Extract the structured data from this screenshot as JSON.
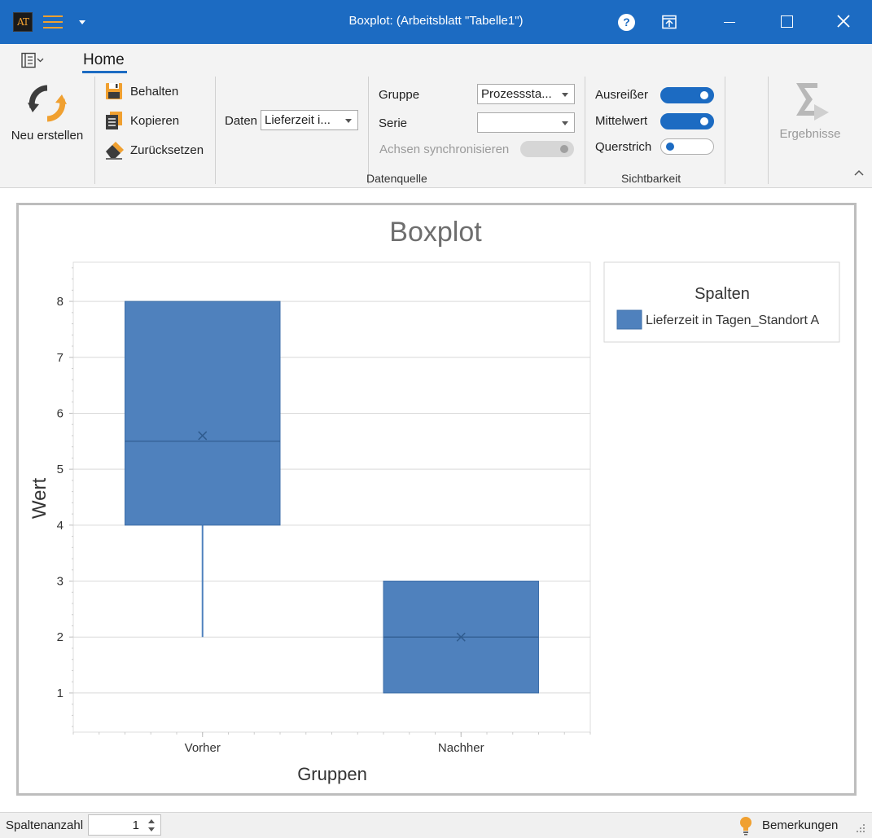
{
  "window": {
    "title": "Boxplot:  (Arbeitsblatt \"Tabelle1\")",
    "logo_text": "AT",
    "colors": {
      "titlebar": "#1c6bc2",
      "accent": "#f0a030"
    }
  },
  "ribbon": {
    "tab_home": "Home",
    "new_button": "Neu erstellen",
    "keep_button": "Behalten",
    "copy_button": "Kopieren",
    "reset_button": "Zurücksetzen",
    "data_label": "Daten",
    "data_value": "Lieferzeit i...",
    "group_label": "Gruppe",
    "group_value": "Prozesssta...",
    "series_label": "Serie",
    "series_value": "",
    "sync_axes_label": "Achsen synchronisieren",
    "sync_axes_enabled": false,
    "datasource_group": "Datenquelle",
    "outliers_label": "Ausreißer",
    "outliers_on": true,
    "mean_label": "Mittelwert",
    "mean_on": true,
    "crossbar_label": "Querstrich",
    "crossbar_on": false,
    "visibility_group": "Sichtbarkeit",
    "results_button": "Ergebnisse"
  },
  "chart_data": {
    "type": "boxplot",
    "title": "Boxplot",
    "xlabel": "Gruppen",
    "ylabel": "Wert",
    "categories": [
      "Vorher",
      "Nachher"
    ],
    "ylim": [
      0.3,
      8.7
    ],
    "yticks": [
      1,
      2,
      3,
      4,
      5,
      6,
      7,
      8
    ],
    "grid": true,
    "color": "#4f81bd",
    "series": [
      {
        "name": "Lieferzeit in Tagen_Standort A",
        "boxes": [
          {
            "category": "Vorher",
            "min": 2,
            "q1": 4,
            "median": 5.5,
            "mean": 5.6,
            "q3": 8,
            "max": 8
          },
          {
            "category": "Nachher",
            "min": 1,
            "q1": 1,
            "median": 2,
            "mean": 2,
            "q3": 3,
            "max": 3
          }
        ]
      }
    ],
    "legend": {
      "title": "Spalten",
      "position": "right"
    }
  },
  "statusbar": {
    "column_count_label": "Spaltenanzahl",
    "column_count": "1",
    "remarks_label": "Bemerkungen"
  }
}
